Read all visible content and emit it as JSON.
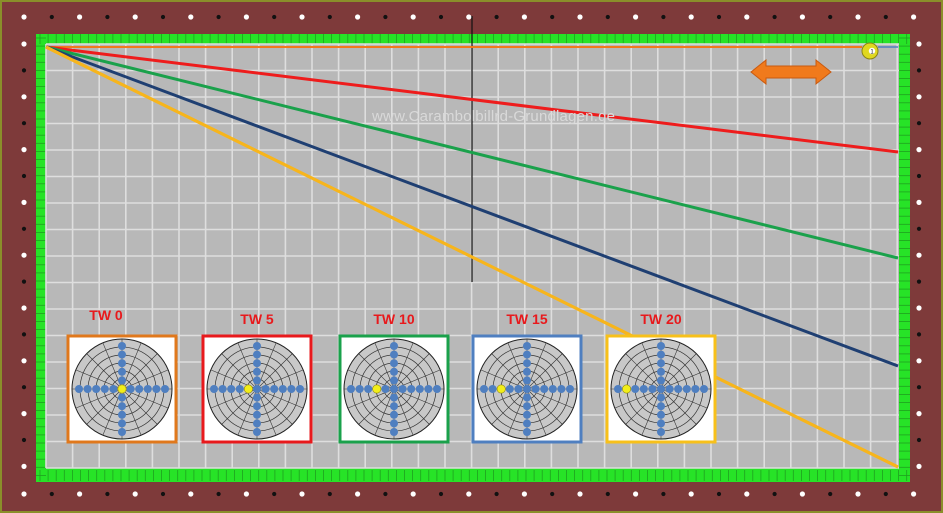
{
  "watermark": "www.Carambolbillrd-Grundlagen.de",
  "ball": {
    "label": "1",
    "color": "#e0d81e"
  },
  "colors": {
    "frame": "#7e3a3a",
    "frame_border": "#8a8f2a",
    "cushion": "#27e327",
    "cloth": "#b8b8b8",
    "grid": "#dedede",
    "diamond_white": "#ffffff",
    "diamond_black": "#111111",
    "arrow": "#f07a1c",
    "label_text": "#e8191c",
    "target_dot": "#4f7fc0",
    "target_center": "#f2ee1a"
  },
  "paths": [
    {
      "name": "tw0-path",
      "color": "#f07a1c"
    },
    {
      "name": "tw5-path",
      "color": "#ee1c1c"
    },
    {
      "name": "tw10-path",
      "color": "#1aa14b"
    },
    {
      "name": "tw15-path",
      "color": "#1f3f72"
    },
    {
      "name": "tw20-path",
      "color": "#f7b51c"
    }
  ],
  "panels": [
    {
      "label": "TW 0",
      "color": "#e0781c",
      "hit_offset": 0
    },
    {
      "label": "TW 5",
      "color": "#e8191c",
      "hit_offset": 1
    },
    {
      "label": "TW 10",
      "color": "#1aa14b",
      "hit_offset": 2
    },
    {
      "label": "TW 15",
      "color": "#4f7fc0",
      "hit_offset": 3
    },
    {
      "label": "TW 20",
      "color": "#f7c01a",
      "hit_offset": 4
    }
  ]
}
